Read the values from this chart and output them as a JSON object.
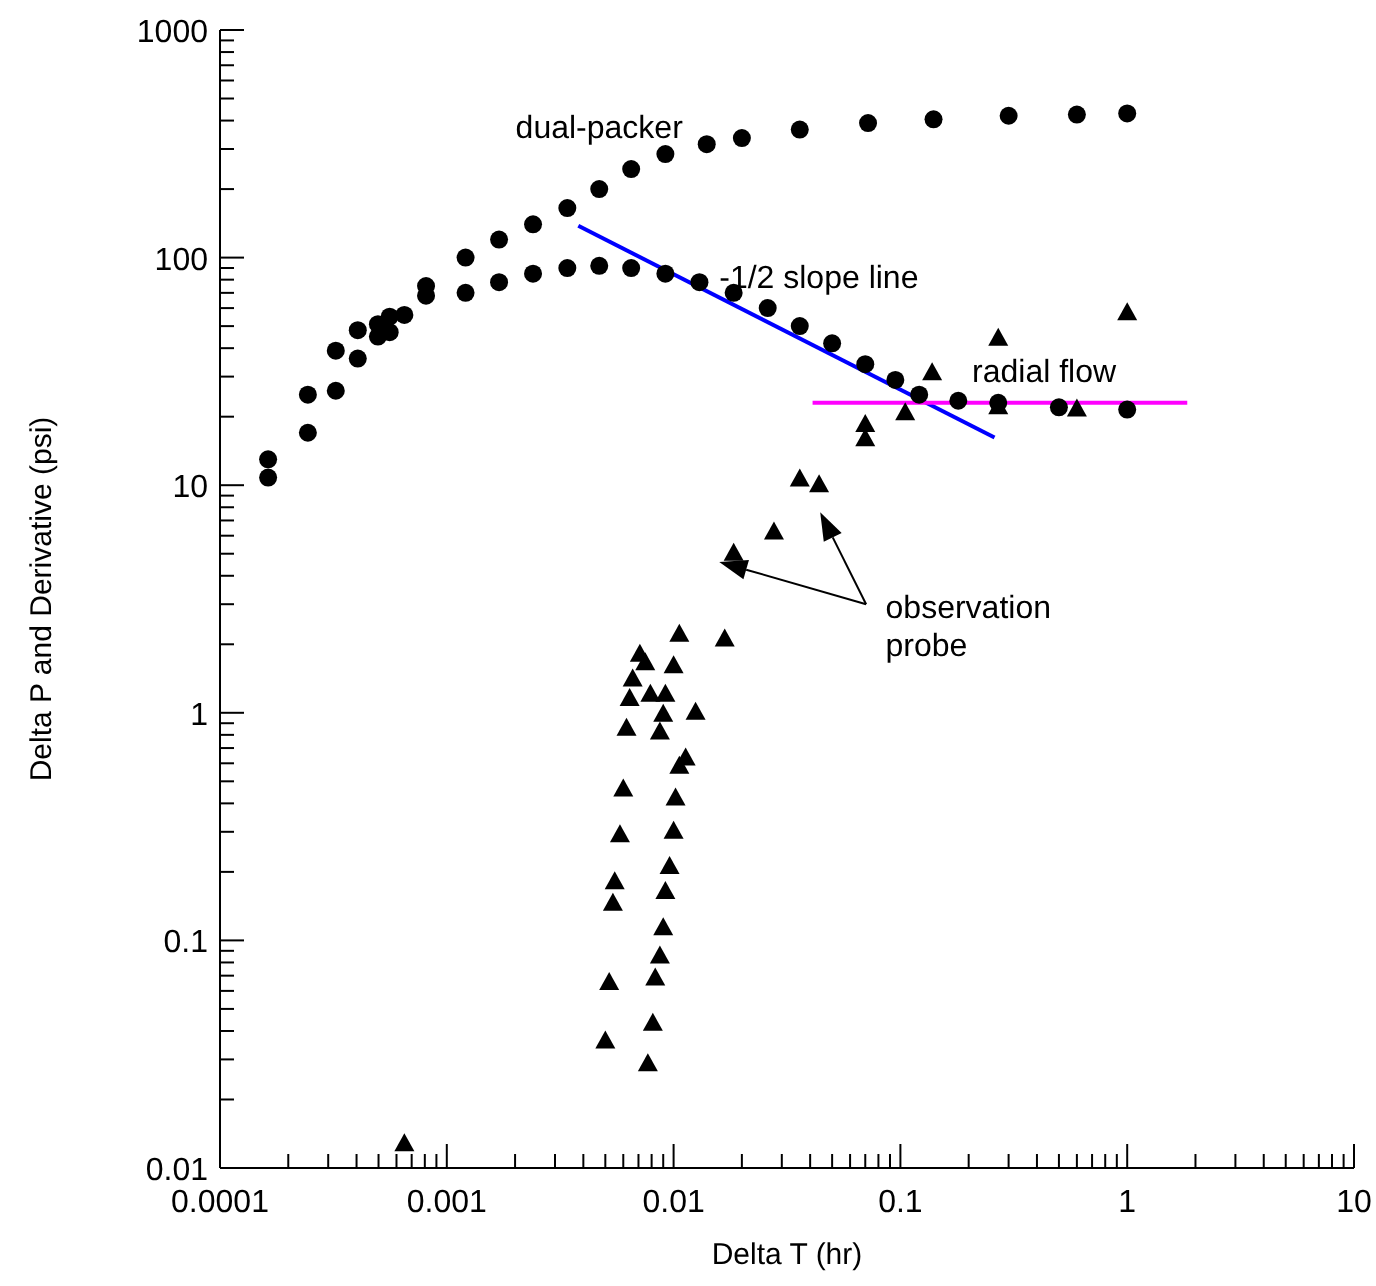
{
  "chart_data": {
    "type": "scatter",
    "xlabel": "Delta T (hr)",
    "ylabel": "Delta P and Derivative (psi)",
    "log": "xy",
    "xlim": [
      0.0001,
      10
    ],
    "ylim": [
      0.01,
      1000
    ],
    "xticks": [
      0.0001,
      {
        "value": 0.0002,
        "label": null
      },
      {
        "value": 0.0003,
        "label": null
      },
      {
        "value": 0.0004,
        "label": null
      },
      {
        "value": 0.0005,
        "label": null
      },
      {
        "value": 0.0006,
        "label": null
      },
      {
        "value": 0.0007,
        "label": null
      },
      {
        "value": 0.0008,
        "label": null
      },
      {
        "value": 0.0009,
        "label": null
      },
      0.001,
      {
        "value": 0.002,
        "label": null
      },
      {
        "value": 0.003,
        "label": null
      },
      {
        "value": 0.004,
        "label": null
      },
      {
        "value": 0.005,
        "label": null
      },
      {
        "value": 0.006,
        "label": null
      },
      {
        "value": 0.007,
        "label": null
      },
      {
        "value": 0.008,
        "label": null
      },
      {
        "value": 0.009,
        "label": null
      },
      0.01,
      {
        "value": 0.02,
        "label": null
      },
      {
        "value": 0.03,
        "label": null
      },
      {
        "value": 0.04,
        "label": null
      },
      {
        "value": 0.05,
        "label": null
      },
      {
        "value": 0.06,
        "label": null
      },
      {
        "value": 0.07,
        "label": null
      },
      {
        "value": 0.08,
        "label": null
      },
      {
        "value": 0.09,
        "label": null
      },
      0.1,
      {
        "value": 0.2,
        "label": null
      },
      {
        "value": 0.3,
        "label": null
      },
      {
        "value": 0.4,
        "label": null
      },
      {
        "value": 0.5,
        "label": null
      },
      {
        "value": 0.6,
        "label": null
      },
      {
        "value": 0.7,
        "label": null
      },
      {
        "value": 0.8,
        "label": null
      },
      {
        "value": 0.9,
        "label": null
      },
      1,
      {
        "value": 2,
        "label": null
      },
      {
        "value": 3,
        "label": null
      },
      {
        "value": 4,
        "label": null
      },
      {
        "value": 5,
        "label": null
      },
      {
        "value": 6,
        "label": null
      },
      {
        "value": 7,
        "label": null
      },
      {
        "value": 8,
        "label": null
      },
      {
        "value": 9,
        "label": null
      },
      10
    ],
    "yticks": [
      0.01,
      {
        "value": 0.02,
        "label": null
      },
      {
        "value": 0.03,
        "label": null
      },
      {
        "value": 0.04,
        "label": null
      },
      {
        "value": 0.05,
        "label": null
      },
      {
        "value": 0.06,
        "label": null
      },
      {
        "value": 0.07,
        "label": null
      },
      {
        "value": 0.08,
        "label": null
      },
      {
        "value": 0.09,
        "label": null
      },
      0.1,
      {
        "value": 0.2,
        "label": null
      },
      {
        "value": 0.3,
        "label": null
      },
      {
        "value": 0.4,
        "label": null
      },
      {
        "value": 0.5,
        "label": null
      },
      {
        "value": 0.6,
        "label": null
      },
      {
        "value": 0.7,
        "label": null
      },
      {
        "value": 0.8,
        "label": null
      },
      {
        "value": 0.9,
        "label": null
      },
      1,
      {
        "value": 2,
        "label": null
      },
      {
        "value": 3,
        "label": null
      },
      {
        "value": 4,
        "label": null
      },
      {
        "value": 5,
        "label": null
      },
      {
        "value": 6,
        "label": null
      },
      {
        "value": 7,
        "label": null
      },
      {
        "value": 8,
        "label": null
      },
      {
        "value": 9,
        "label": null
      },
      10,
      {
        "value": 20,
        "label": null
      },
      {
        "value": 30,
        "label": null
      },
      {
        "value": 40,
        "label": null
      },
      {
        "value": 50,
        "label": null
      },
      {
        "value": 60,
        "label": null
      },
      {
        "value": 70,
        "label": null
      },
      {
        "value": 80,
        "label": null
      },
      {
        "value": 90,
        "label": null
      },
      100,
      {
        "value": 200,
        "label": null
      },
      {
        "value": 300,
        "label": null
      },
      {
        "value": 400,
        "label": null
      },
      {
        "value": 500,
        "label": null
      },
      {
        "value": 600,
        "label": null
      },
      {
        "value": 700,
        "label": null
      },
      {
        "value": 800,
        "label": null
      },
      {
        "value": 900,
        "label": null
      },
      1000
    ],
    "annotations": [
      "dual-packer",
      "-1/2 slope line",
      "radial flow",
      "observation probe"
    ],
    "series": [
      {
        "marker": "circle",
        "color": "#000000",
        "x": [
          0.000163,
          0.000244,
          0.000324,
          0.000405,
          0.000497,
          0.00056,
          0.00065,
          0.00081,
          0.00121,
          0.0017,
          0.0024,
          0.0034,
          0.0047,
          0.0065,
          0.0092,
          0.014,
          0.02,
          0.036,
          0.072,
          0.14,
          0.3,
          0.6,
          1.0
        ],
        "values": [
          10.8,
          17,
          26,
          36,
          45,
          55,
          null,
          75,
          100,
          120,
          140,
          165,
          200,
          245,
          285,
          315,
          335,
          365,
          390,
          405,
          420,
          425,
          430
        ]
      },
      {
        "marker": "circle",
        "color": "#000000",
        "x": [
          0.000163,
          0.000244,
          0.000324,
          0.000405,
          0.000497,
          0.00056,
          0.00065,
          0.00081,
          0.00121,
          0.0017,
          0.0024,
          0.0034,
          0.0047,
          0.0065,
          0.0092,
          0.013,
          0.0184,
          0.026,
          0.036,
          0.05,
          0.07,
          0.095,
          0.121,
          0.18,
          0.27,
          0.5,
          1.0
        ],
        "values": [
          13,
          25,
          39,
          48,
          51,
          47,
          56,
          68,
          70,
          78,
          85,
          90,
          92,
          90,
          85,
          78,
          70,
          60,
          50,
          42,
          34,
          29,
          25,
          23.5,
          23,
          22,
          21.5
        ]
      },
      {
        "marker": "triangle",
        "color": "#000000",
        "x": [
          0.00065,
          0.005,
          0.0052,
          0.0054,
          0.0055,
          0.0058,
          0.006,
          0.0062,
          0.0064,
          0.0066,
          0.0071,
          0.0075,
          0.0079,
          0.0087,
          0.009,
          0.0092,
          0.01,
          0.0106,
          0.0184,
          0.036,
          0.07,
          0.138,
          0.27,
          1.0
        ],
        "values": [
          0.0127,
          0.036,
          0.065,
          0.145,
          0.18,
          0.29,
          0.46,
          0.85,
          1.15,
          1.4,
          1.8,
          1.65,
          1.2,
          0.82,
          0.98,
          1.2,
          1.6,
          2.2,
          5,
          10.6,
          18.4,
          31,
          44,
          57
        ]
      },
      {
        "marker": "triangle",
        "color": "#000000",
        "x": [
          0.0077,
          0.0081,
          0.0083,
          0.0087,
          0.009,
          0.0092,
          0.0096,
          0.01,
          0.0102,
          0.0106,
          0.0113,
          0.0125,
          0.0168,
          0.0277,
          0.0438,
          0.07,
          0.105,
          0.27,
          0.6
        ],
        "values": [
          0.0286,
          0.043,
          0.068,
          0.085,
          0.113,
          0.163,
          0.21,
          0.3,
          0.42,
          0.58,
          0.63,
          1.0,
          2.1,
          6.2,
          10,
          15.9,
          20.7,
          22,
          21.5
        ]
      },
      {
        "type": "line",
        "marker": "none",
        "color": "#0000ff",
        "x": [
          0.0038,
          0.26
        ],
        "values": [
          138,
          16.2
        ]
      },
      {
        "type": "line",
        "marker": "none",
        "color": "#ff00ff",
        "x": [
          0.041,
          1.84
        ],
        "values": [
          23,
          23
        ]
      }
    ]
  }
}
